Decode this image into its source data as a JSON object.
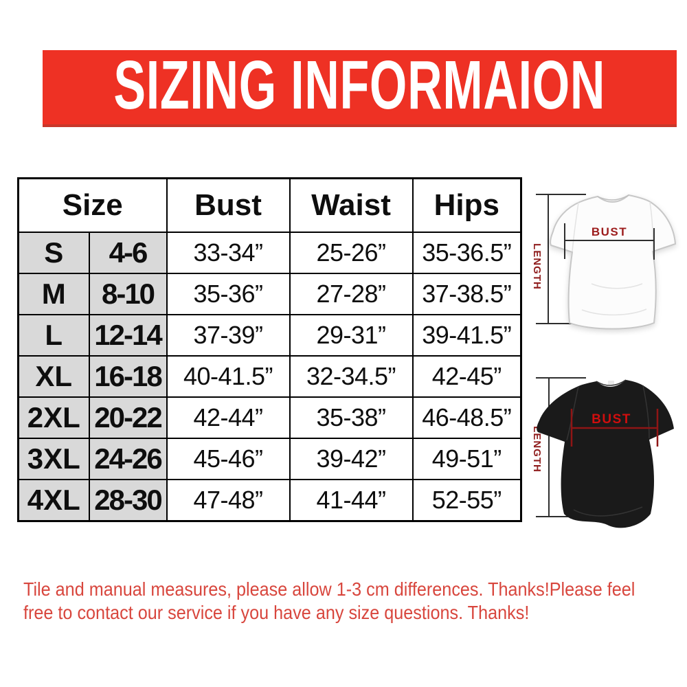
{
  "banner": {
    "title": "SIZING INFORMAION",
    "background_color": "#ee3124",
    "border_color": "#c8372a",
    "text_color": "#ffffff"
  },
  "table": {
    "headers": {
      "size": "Size",
      "bust": "Bust",
      "waist": "Waist",
      "hips": "Hips"
    },
    "rows": [
      {
        "size": "S",
        "range": "4-6",
        "bust": "33-34”",
        "waist": "25-26”",
        "hips": "35-36.5”"
      },
      {
        "size": "M",
        "range": "8-10",
        "bust": "35-36”",
        "waist": "27-28”",
        "hips": "37-38.5”"
      },
      {
        "size": "L",
        "range": "12-14",
        "bust": "37-39”",
        "waist": "29-31”",
        "hips": "39-41.5”"
      },
      {
        "size": "XL",
        "range": "16-18",
        "bust": "40-41.5”",
        "waist": "32-34.5”",
        "hips": "42-45”"
      },
      {
        "size": "2XL",
        "range": "20-22",
        "bust": "42-44”",
        "waist": "35-38”",
        "hips": "46-48.5”"
      },
      {
        "size": "3XL",
        "range": "24-26",
        "bust": "45-46”",
        "waist": "39-42”",
        "hips": "49-51”"
      },
      {
        "size": "4XL",
        "range": "28-30",
        "bust": "47-48”",
        "waist": "41-44”",
        "hips": "52-55”"
      }
    ],
    "shaded_cell_color": "#d9d9d9",
    "border_color": "#000000"
  },
  "diagrams": {
    "white_shirt": {
      "bust_label": "BUST",
      "length_label": "LENGTH",
      "shirt_color": "#fcfcfc",
      "bust_label_color": "#9c1c1c",
      "measure_line_color": "#2e2e2e"
    },
    "black_shirt": {
      "bust_label": "BUST",
      "length_label": "LENGTH",
      "shirt_color": "#1a1a1a",
      "bust_label_color": "#cf0e0e",
      "measure_line_color": "#8f1515"
    }
  },
  "note": {
    "line1": "Tile and manual measures, please allow 1-3 cm differences. Thanks!Please feel",
    "line2": "free to contact our service if you have any size questions. Thanks!",
    "color": "#d8463d"
  }
}
